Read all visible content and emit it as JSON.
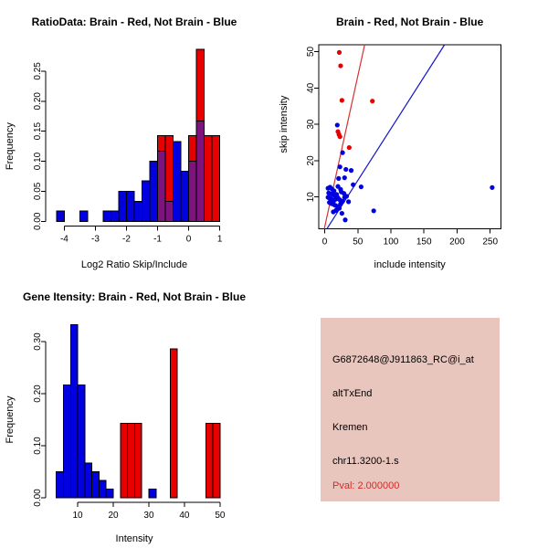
{
  "colors": {
    "red": "#e60000",
    "blue": "#0000e1",
    "overlap_purple": "#7d147d",
    "line_red": "#d93030",
    "line_blue": "#1515c8",
    "axis_black": "#000000",
    "info_bg": "#e9c6bd",
    "pval_red": "#d42a2a",
    "background": "#ffffff"
  },
  "chart_data": [
    {
      "type": "bar",
      "title": "RatioData: Brain - Red, Not Brain - Blue",
      "xlabel": "Log2 Ratio Skip/Include",
      "ylabel": "Frequency",
      "legend": "none",
      "grid": false,
      "bin_width": 0.25,
      "xlim": [
        -4.6,
        1.1
      ],
      "ylim": [
        0,
        0.3
      ],
      "xticks": [
        -4,
        -3,
        -2,
        -1,
        0,
        1
      ],
      "xtick_labels": [
        "-4",
        "-3",
        "-2",
        "-1",
        "0",
        "1"
      ],
      "yticks": [
        0,
        0.05,
        0.1,
        0.15,
        0.2,
        0.25
      ],
      "ytick_labels": [
        "0.00",
        "0.05",
        "0.10",
        "0.15",
        "0.20",
        "0.25"
      ],
      "series": [
        {
          "name": "Not Brain",
          "color_key": "blue",
          "bins": [
            [
              -4.25,
              0.017
            ],
            [
              -3.5,
              0.017
            ],
            [
              -2.75,
              0.017
            ],
            [
              -2.5,
              0.017
            ],
            [
              -2.25,
              0.05
            ],
            [
              -2.0,
              0.05
            ],
            [
              -1.75,
              0.033
            ],
            [
              -1.5,
              0.067
            ],
            [
              -1.25,
              0.1
            ],
            [
              -1.0,
              0.117
            ],
            [
              -0.75,
              0.033
            ],
            [
              -0.5,
              0.133
            ],
            [
              -0.25,
              0.083
            ],
            [
              0.0,
              0.1
            ],
            [
              0.25,
              0.167
            ]
          ]
        },
        {
          "name": "Brain",
          "color_key": "red",
          "bins": [
            [
              -1.0,
              0.143
            ],
            [
              -0.75,
              0.143
            ],
            [
              0.0,
              0.143
            ],
            [
              0.25,
              0.286
            ],
            [
              0.5,
              0.143
            ],
            [
              0.75,
              0.143
            ]
          ]
        }
      ]
    },
    {
      "type": "scatter",
      "title": "Brain - Red, Not Brain - Blue",
      "xlabel": "include intensity",
      "ylabel": "skip intensity",
      "legend": "none",
      "grid": false,
      "xlim": [
        -9,
        266
      ],
      "ylim": [
        1.2,
        51.9
      ],
      "xticks": [
        0,
        50,
        100,
        150,
        200,
        250
      ],
      "xtick_labels": [
        "0",
        "50",
        "100",
        "150",
        "200",
        "250"
      ],
      "yticks": [
        10,
        20,
        30,
        40,
        50
      ],
      "ytick_labels": [
        "10",
        "20",
        "30",
        "40",
        "50"
      ],
      "series": [
        {
          "name": "Brain",
          "color_key": "red",
          "points": [
            [
              22,
              49.8
            ],
            [
              24,
              46.1
            ],
            [
              26,
              36.6
            ],
            [
              72,
              36.4
            ],
            [
              20,
              28.0
            ],
            [
              21.5,
              27.2
            ],
            [
              23,
              26.6
            ],
            [
              37,
              23.6
            ]
          ]
        },
        {
          "name": "Not Brain",
          "color_key": "blue",
          "points": [
            [
              19,
              29.8
            ],
            [
              27,
              22.2
            ],
            [
              23,
              18.3
            ],
            [
              32,
              17.6
            ],
            [
              40,
              17.3
            ],
            [
              21,
              15.1
            ],
            [
              30,
              15.3
            ],
            [
              43,
              13.4
            ],
            [
              55,
              12.8
            ],
            [
              253,
              12.6
            ],
            [
              74,
              6.2
            ],
            [
              31,
              3.7
            ],
            [
              5,
              12.4
            ],
            [
              8,
              12.7
            ],
            [
              11,
              12.2
            ],
            [
              14,
              11.7
            ],
            [
              20,
              12.9
            ],
            [
              24,
              12.1
            ],
            [
              6,
              11.1
            ],
            [
              9,
              10.9
            ],
            [
              12,
              10.6
            ],
            [
              15,
              10.4
            ],
            [
              18,
              10.7
            ],
            [
              25,
              11.4
            ],
            [
              29,
              11.0
            ],
            [
              5,
              9.9
            ],
            [
              8,
              9.6
            ],
            [
              11,
              9.3
            ],
            [
              14,
              9.0
            ],
            [
              17,
              9.4
            ],
            [
              20,
              9.8
            ],
            [
              23,
              9.2
            ],
            [
              33,
              10.2
            ],
            [
              7,
              8.5
            ],
            [
              10,
              8.2
            ],
            [
              13,
              8.0
            ],
            [
              16,
              7.7
            ],
            [
              19,
              7.4
            ],
            [
              24,
              8.1
            ],
            [
              27,
              8.8
            ],
            [
              30,
              9.9
            ],
            [
              36,
              8.7
            ],
            [
              22,
              6.9
            ],
            [
              17,
              6.3
            ],
            [
              26,
              5.5
            ],
            [
              13,
              5.9
            ]
          ]
        }
      ],
      "lines": [
        {
          "name": "brain-fit-line",
          "color_key": "line_red",
          "slope": 0.83,
          "intercept": 1.8
        },
        {
          "name": "notbrain-fit-line",
          "color_key": "line_blue",
          "slope": 0.285,
          "intercept": 0.3
        }
      ]
    },
    {
      "type": "bar",
      "title": "Gene Itensity: Brain - Red, Not Brain - Blue",
      "xlabel": "Intensity",
      "ylabel": "Frequency",
      "legend": "none",
      "grid": false,
      "bin_width": 2,
      "xlim": [
        1,
        50.8
      ],
      "ylim": [
        0,
        0.351
      ],
      "xticks": [
        10,
        20,
        30,
        40,
        50
      ],
      "xtick_labels": [
        "10",
        "20",
        "30",
        "40",
        "50"
      ],
      "yticks": [
        0,
        0.1,
        0.2,
        0.3
      ],
      "ytick_labels": [
        "0.00",
        "0.10",
        "0.20",
        "0.30"
      ],
      "series": [
        {
          "name": "Not Brain",
          "color_key": "blue",
          "bins": [
            [
              4,
              0.05
            ],
            [
              6,
              0.217
            ],
            [
              8,
              0.333
            ],
            [
              10,
              0.217
            ],
            [
              12,
              0.067
            ],
            [
              14,
              0.05
            ],
            [
              16,
              0.033
            ],
            [
              18,
              0.017
            ],
            [
              30,
              0.017
            ]
          ]
        },
        {
          "name": "Brain",
          "color_key": "red",
          "bins": [
            [
              22,
              0.143
            ],
            [
              24,
              0.143
            ],
            [
              26,
              0.143
            ],
            [
              36,
              0.286
            ],
            [
              46,
              0.143
            ],
            [
              48,
              0.143
            ]
          ]
        }
      ]
    }
  ],
  "info_box": {
    "lines": [
      "G6872648@J911863_RC@i_at",
      "altTxEnd",
      "Kremen",
      "chr11.3200-1.s"
    ],
    "pval": "Pval: 2.000000"
  }
}
